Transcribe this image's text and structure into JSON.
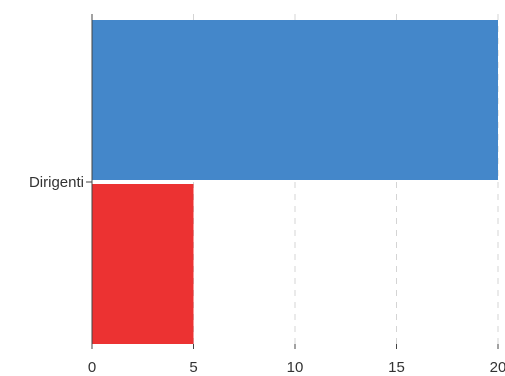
{
  "chart_data": {
    "type": "bar",
    "orientation": "horizontal",
    "categories": [
      "Dirigenti"
    ],
    "series": [
      {
        "values": [
          20
        ],
        "color": "#4487ca"
      },
      {
        "values": [
          5
        ],
        "color": "#ec3232"
      }
    ],
    "xlim": [
      0,
      20
    ],
    "xticks": [
      "0",
      "5",
      "10",
      "15",
      "20"
    ],
    "grid": true,
    "legend": "none"
  }
}
